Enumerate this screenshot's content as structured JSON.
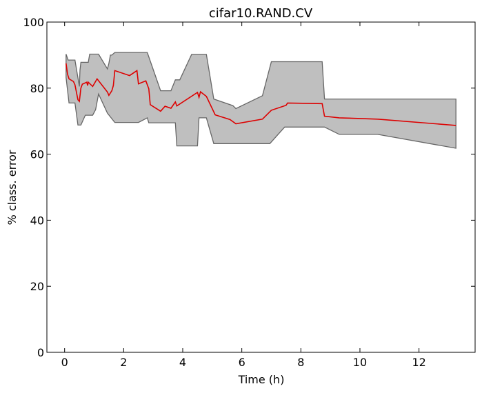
{
  "chart_data": {
    "type": "area",
    "title": "cifar10.RAND.CV",
    "xlabel": "Time (h)",
    "ylabel": "% class. error",
    "xlim": [
      -0.6,
      13.9
    ],
    "ylim": [
      0,
      100
    ],
    "xticks": [
      0,
      2,
      4,
      6,
      8,
      10,
      12
    ],
    "yticks": [
      0,
      20,
      40,
      60,
      80,
      100
    ],
    "grid": false,
    "legend": "none",
    "colors": {
      "mean_line": "#dd0000",
      "band_fill": "#bfbfbf",
      "band_edge": "#666666",
      "axes": "#000000"
    },
    "series": [
      {
        "kind": "band_upper",
        "x": [
          0.05,
          0.12,
          0.2,
          0.35,
          0.5,
          0.52,
          0.55,
          0.6,
          0.8,
          0.85,
          1.15,
          1.45,
          1.5,
          1.55,
          1.6,
          1.7,
          2.2,
          2.5,
          2.8,
          3.25,
          3.6,
          3.75,
          3.9,
          4.3,
          4.8,
          5.05,
          5.7,
          5.8,
          6.7,
          7.0,
          8.72,
          8.8,
          13.25
        ],
        "values": [
          90.3,
          88.5,
          88.5,
          88.5,
          80.5,
          85.5,
          87.8,
          87.8,
          87.8,
          90.3,
          90.3,
          85.8,
          87.5,
          90,
          90,
          90.8,
          90.8,
          90.8,
          90.8,
          79.2,
          79.2,
          82.5,
          82.5,
          90.2,
          90.2,
          76.7,
          74.7,
          73.8,
          77.7,
          88,
          88,
          76.7,
          76.7
        ]
      },
      {
        "kind": "band_lower",
        "x": [
          0.05,
          0.15,
          0.35,
          0.45,
          0.55,
          0.7,
          0.95,
          1.05,
          1.15,
          1.45,
          1.7,
          2.5,
          2.8,
          2.85,
          3.75,
          3.8,
          4.5,
          4.55,
          4.8,
          5.05,
          6.95,
          7.45,
          8.8,
          9.3,
          10.6,
          13.25
        ],
        "values": [
          83.2,
          75.5,
          75.5,
          68.8,
          68.8,
          71.8,
          71.8,
          73.5,
          78.2,
          72.4,
          69.6,
          69.6,
          71,
          69.5,
          69.5,
          62.5,
          62.5,
          71,
          71,
          63.2,
          63.2,
          68.2,
          68.2,
          66,
          66,
          61.8
        ]
      },
      {
        "kind": "mean",
        "x": [
          0.05,
          0.1,
          0.15,
          0.3,
          0.35,
          0.45,
          0.5,
          0.55,
          0.6,
          0.75,
          0.78,
          0.8,
          0.95,
          1.1,
          1.45,
          1.5,
          1.6,
          1.65,
          1.7,
          2.2,
          2.45,
          2.5,
          2.75,
          2.85,
          2.9,
          3.25,
          3.4,
          3.6,
          3.75,
          3.8,
          4.5,
          4.55,
          4.6,
          4.8,
          5.1,
          5.6,
          5.8,
          6.7,
          7.0,
          7.5,
          7.55,
          8.72,
          8.8,
          9.3,
          10.6,
          13.25
        ],
        "values": [
          87.5,
          84.2,
          82.8,
          82,
          81,
          76.5,
          76,
          80,
          81.2,
          81.8,
          80.8,
          81.8,
          80.5,
          82.8,
          78.8,
          77.8,
          79.2,
          80.8,
          85.3,
          83.8,
          85.3,
          81.3,
          82.2,
          79.8,
          75,
          73,
          74.5,
          73.9,
          75.8,
          74.6,
          78.7,
          77.2,
          78.9,
          77.5,
          71.9,
          70.5,
          69.2,
          70.6,
          73.3,
          74.8,
          75.5,
          75.3,
          71.5,
          71,
          70.6,
          68.7
        ]
      }
    ]
  }
}
